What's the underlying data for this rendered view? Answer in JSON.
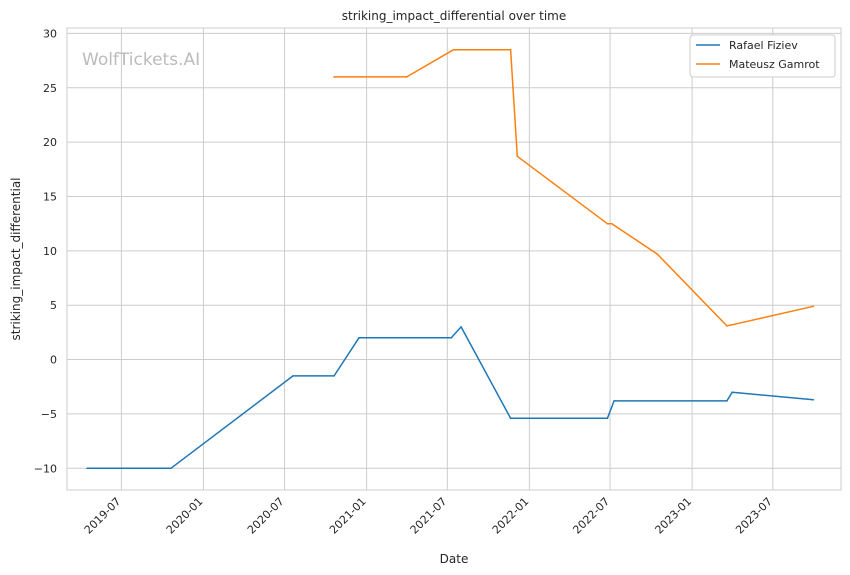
{
  "chart_data": {
    "type": "line",
    "title": "striking_impact_differential over time",
    "xlabel": "Date",
    "ylabel": "striking_impact_differential",
    "watermark": "WolfTickets.AI",
    "x_axis": {
      "type": "date",
      "range": [
        "2019-03-01",
        "2023-12-01"
      ],
      "ticks": [
        "2019-07-01",
        "2020-01-01",
        "2020-07-01",
        "2021-01-01",
        "2021-07-01",
        "2022-01-01",
        "2022-07-01",
        "2023-01-01",
        "2023-07-01"
      ],
      "tick_labels": [
        "2019-07",
        "2020-01",
        "2020-07",
        "2021-01",
        "2021-07",
        "2022-01",
        "2022-07",
        "2023-01",
        "2023-07"
      ]
    },
    "y_axis": {
      "range": [
        -12,
        30.5
      ],
      "ticks": [
        -10,
        -5,
        0,
        5,
        10,
        15,
        20,
        25,
        30
      ],
      "tick_labels": [
        "−10",
        "−5",
        "0",
        "5",
        "10",
        "15",
        "20",
        "25",
        "30"
      ]
    },
    "grid": true,
    "legend_position": "top-right",
    "series": [
      {
        "name": "Rafael Fiziev",
        "color": "#1f77b4",
        "points": [
          {
            "x": "2019-04-15",
            "y": -10.0
          },
          {
            "x": "2019-10-20",
            "y": -10.0
          },
          {
            "x": "2020-07-20",
            "y": -1.5
          },
          {
            "x": "2020-10-20",
            "y": -1.5
          },
          {
            "x": "2020-12-15",
            "y": 2.0
          },
          {
            "x": "2021-07-10",
            "y": 2.0
          },
          {
            "x": "2021-08-01",
            "y": 3.0
          },
          {
            "x": "2021-11-20",
            "y": -5.4
          },
          {
            "x": "2022-06-25",
            "y": -5.4
          },
          {
            "x": "2022-07-10",
            "y": -3.8
          },
          {
            "x": "2023-03-20",
            "y": -3.8
          },
          {
            "x": "2023-04-01",
            "y": -3.0
          },
          {
            "x": "2023-09-30",
            "y": -3.7
          }
        ]
      },
      {
        "name": "Mateusz Gamrot",
        "color": "#ff7f0e",
        "points": [
          {
            "x": "2020-10-20",
            "y": 26.0
          },
          {
            "x": "2021-04-01",
            "y": 26.0
          },
          {
            "x": "2021-07-15",
            "y": 28.5
          },
          {
            "x": "2021-11-20",
            "y": 28.5
          },
          {
            "x": "2021-12-05",
            "y": 18.7
          },
          {
            "x": "2022-06-25",
            "y": 12.5
          },
          {
            "x": "2022-07-05",
            "y": 12.5
          },
          {
            "x": "2022-10-15",
            "y": 9.7
          },
          {
            "x": "2023-03-20",
            "y": 3.1
          },
          {
            "x": "2023-04-01",
            "y": 3.2
          },
          {
            "x": "2023-09-30",
            "y": 4.9
          }
        ]
      }
    ]
  }
}
